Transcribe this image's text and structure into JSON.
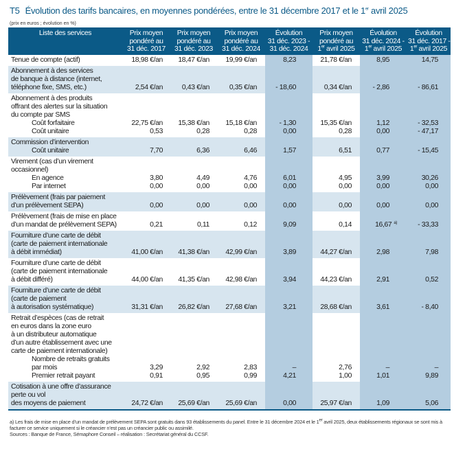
{
  "title": {
    "number": "T5",
    "text": "Évolution des tarifs bancaires, en moyennes pondérées, entre le 31 décembre 2017 et le 1er avril 2025"
  },
  "unit_note": "(prix en euros ; évolution en %)",
  "colors": {
    "header": "#0b5a87",
    "row_alt": "#d7e5ef",
    "evolution_col": "#b4cde0"
  },
  "columns": [
    [
      "Liste des services"
    ],
    [
      "Prix moyen",
      "pondéré au",
      "31 déc. 2017"
    ],
    [
      "Prix moyen",
      "pondéré au",
      "31 déc. 2023"
    ],
    [
      "Prix moyen",
      "pondéré au",
      "31 déc. 2024"
    ],
    [
      "Évolution",
      "31 déc. 2023 -",
      "31 déc. 2024"
    ],
    [
      "Prix moyen",
      "pondéré au",
      "1er avril 2025"
    ],
    [
      "Évolution",
      "31 déc. 2024 -",
      "1er avril 2025"
    ],
    [
      "Évolution",
      "31 déc. 2017 -",
      "1er avril 2025"
    ]
  ],
  "rows": [
    {
      "title": [
        "Tenue de compte (actif)"
      ],
      "items": [
        {
          "label": [],
          "values": [
            "18,98 €/an",
            "18,47 €/an",
            "19,99 €/an",
            "8,23",
            "21,78 €/an",
            "8,95",
            "14,75"
          ]
        }
      ]
    },
    {
      "title": [
        "Abonnement à des services",
        "de banque à distance (internet,",
        "téléphone fixe, SMS, etc.)"
      ],
      "items": [
        {
          "label": [],
          "values": [
            "2,54 €/an",
            "0,43 €/an",
            "0,35 €/an",
            "- 18,60",
            "0,34 €/an",
            "- 2,86",
            "- 86,61"
          ]
        }
      ]
    },
    {
      "title": [
        "Abonnement à des produits",
        "offrant des alertes sur la situation",
        "du compte par SMS"
      ],
      "items": [
        {
          "label": [
            "Coût forfaitaire"
          ],
          "values": [
            "22,75 €/an",
            "15,38 €/an",
            "15,18 €/an",
            "- 1,30",
            "15,35 €/an",
            "1,12",
            "- 32,53"
          ]
        },
        {
          "label": [
            "Coût unitaire"
          ],
          "values": [
            "0,53",
            "0,28",
            "0,28",
            "0,00",
            "0,28",
            "0,00",
            "- 47,17"
          ]
        }
      ]
    },
    {
      "title": [
        "Commission d’intervention"
      ],
      "items": [
        {
          "label": [
            "Coût unitaire"
          ],
          "values": [
            "7,70",
            "6,36",
            "6,46",
            "1,57",
            "6,51",
            "0,77",
            "- 15,45"
          ]
        }
      ]
    },
    {
      "title": [
        "Virement (cas d’un virement",
        "occasionnel)"
      ],
      "items": [
        {
          "label": [
            "En agence"
          ],
          "values": [
            "3,80",
            "4,49",
            "4,76",
            "6,01",
            "4,95",
            "3,99",
            "30,26"
          ]
        },
        {
          "label": [
            "Par internet"
          ],
          "values": [
            "0,00",
            "0,00",
            "0,00",
            "0,00",
            "0,00",
            "0,00",
            "0,00"
          ]
        }
      ]
    },
    {
      "title": [
        "Prélèvement (frais par paiement",
        "d’un prélèvement SEPA)"
      ],
      "items": [
        {
          "label": [],
          "values": [
            "0,00",
            "0,00",
            "0,00",
            "0,00",
            "0,00",
            "0,00",
            "0,00"
          ]
        }
      ]
    },
    {
      "title": [
        "Prélèvement (frais de mise en place",
        "d’un mandat de prélèvement SEPA)"
      ],
      "items": [
        {
          "label": [],
          "values": [
            "0,21",
            "0,11",
            "0,12",
            "9,09",
            "0,14",
            "16,67",
            "- 33,33"
          ],
          "notes": {
            "5": "a)"
          }
        }
      ]
    },
    {
      "title": [
        "Fourniture d’une carte de débit",
        "(carte de paiement internationale",
        "à débit immédiat)"
      ],
      "items": [
        {
          "label": [],
          "values": [
            "41,00 €/an",
            "41,38 €/an",
            "42,99 €/an",
            "3,89",
            "44,27 €/an",
            "2,98",
            "7,98"
          ]
        }
      ]
    },
    {
      "title": [
        "Fourniture d’une carte de débit",
        "(carte de paiement internationale",
        "à débit différé)"
      ],
      "items": [
        {
          "label": [],
          "values": [
            "44,00 €/an",
            "41,35 €/an",
            "42,98 €/an",
            "3,94",
            "44,23 €/an",
            "2,91",
            "0,52"
          ]
        }
      ]
    },
    {
      "title": [
        "Fourniture d’une carte de débit",
        "(carte de paiement",
        "à autorisation systématique)"
      ],
      "items": [
        {
          "label": [],
          "values": [
            "31,31 €/an",
            "26,82 €/an",
            "27,68 €/an",
            "3,21",
            "28,68 €/an",
            "3,61",
            "- 8,40"
          ]
        }
      ]
    },
    {
      "title": [
        "Retrait d’espèces (cas de retrait",
        "en euros dans la zone euro",
        "à un distributeur automatique",
        "d’un autre établissement avec une",
        "carte de paiement internationale)"
      ],
      "items": [
        {
          "label": [
            "Nombre de retraits gratuits",
            "par mois"
          ],
          "values": [
            "3,29",
            "2,92",
            "2,83",
            "–",
            "2,76",
            "–",
            "–"
          ]
        },
        {
          "label": [
            "Premier retrait payant"
          ],
          "values": [
            "0,91",
            "0,95",
            "0,99",
            "4,21",
            "1,00",
            "1,01",
            "9,89"
          ]
        }
      ]
    },
    {
      "title": [
        "Cotisation à une offre d’assurance",
        "perte ou vol",
        "des moyens de paiement"
      ],
      "items": [
        {
          "label": [],
          "values": [
            "24,72 €/an",
            "25,69 €/an",
            "25,69 €/an",
            "0,00",
            "25,97 €/an",
            "1,09",
            "5,06"
          ]
        }
      ]
    }
  ],
  "footnotes": [
    "a) Les frais de mise en place d’un mandat de prélèvement SEPA sont gratuits dans 93 établissements du panel. Entre le 31 décembre 2024 et le 1er avril 2025, deux établissements régionaux se sont mis à facturer ce service uniquement si le créancier n’est pas un créancier public ou assimilé.",
    "Sources : Banque de France, Sémaphore Conseil – réalisation : Secrétariat général du CCSF."
  ]
}
